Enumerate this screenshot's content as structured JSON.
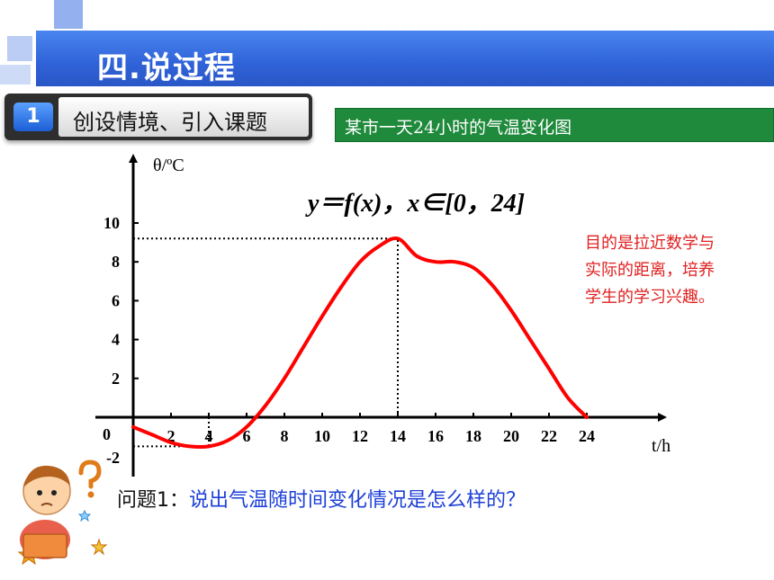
{
  "header": {
    "title": "四.说过程"
  },
  "section": {
    "number": "1",
    "label": "创设情境、引入课题"
  },
  "chart_caption": "某市一天24小时的气温变化图",
  "note": "目的是拉近数学与实际的距离，培养学生的学习兴趣。",
  "question": {
    "label": "问题1：",
    "text": "说出气温随时间变化情况是怎么样的？"
  },
  "colors": {
    "header_blue": "#2f62d8",
    "caption_green": "#1f8a3c",
    "curve_red": "#ff0000",
    "note_red": "#e02020",
    "question_blue": "#1c3fd8"
  },
  "icons": {
    "student": "thinking-student-icon",
    "question_mark": "question-mark-icon",
    "stars": "star-icon"
  },
  "chart_data": {
    "type": "line",
    "formula": "y＝f(x)，x∈[0，24]",
    "ylabel": "θ/ºC",
    "xlabel": "t/h",
    "origin_label": "0",
    "x_ticks": [
      "2",
      "4",
      "6",
      "8",
      "10",
      "12",
      "14",
      "16",
      "18",
      "20",
      "22",
      "24"
    ],
    "y_ticks": [
      "-2",
      "2",
      "4",
      "6",
      "8",
      "10"
    ],
    "xlim": [
      0,
      24
    ],
    "ylim": [
      -2,
      10
    ],
    "grid": false,
    "series": [
      {
        "x": [
          0,
          1,
          2,
          3,
          4,
          5,
          6,
          7,
          8,
          9,
          10,
          11,
          12,
          13,
          14,
          15,
          16,
          17,
          18,
          19,
          20,
          21,
          22,
          23,
          24
        ],
        "y": [
          -0.5,
          -0.9,
          -1.3,
          -1.5,
          -1.5,
          -1.2,
          -0.5,
          0.6,
          2.0,
          3.6,
          5.2,
          6.7,
          8.0,
          8.8,
          9.2,
          8.3,
          8.0,
          8.0,
          7.7,
          6.8,
          5.5,
          4.0,
          2.5,
          1.0,
          0
        ]
      }
    ],
    "markers": [
      {
        "x": 14,
        "y": 9.2
      },
      {
        "x": 4,
        "y": -1.5
      }
    ]
  }
}
